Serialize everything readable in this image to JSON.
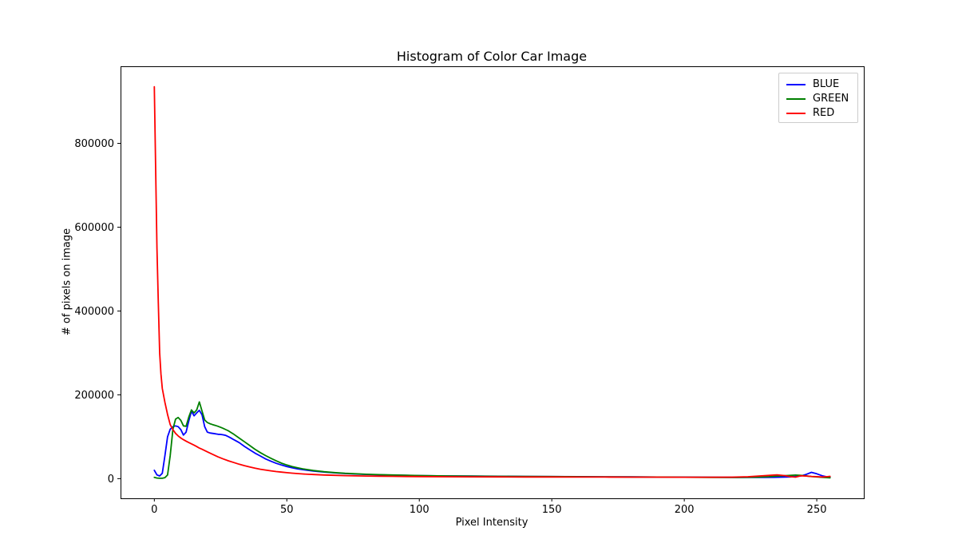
{
  "figure": {
    "background": "#ffffff",
    "spine_color": "#000000",
    "text_color": "#000000"
  },
  "chart_data": {
    "type": "line",
    "title": "Histogram of Color Car Image",
    "xlabel": "Pixel Intensity",
    "ylabel": "# of pixels on image",
    "x_range": [
      -12.75,
      267.75
    ],
    "y_range": [
      -46900,
      983900
    ],
    "x_ticks": [
      0,
      50,
      100,
      150,
      200,
      250
    ],
    "x_tick_labels": [
      "0",
      "50",
      "100",
      "150",
      "200",
      "250"
    ],
    "y_ticks": [
      0,
      200000,
      400000,
      600000,
      800000
    ],
    "y_tick_labels": [
      "0",
      "200000",
      "400000",
      "600000",
      "800000"
    ],
    "grid": false,
    "legend": {
      "position": "upper-right",
      "entries": [
        "BLUE",
        "GREEN",
        "RED"
      ]
    },
    "series": [
      {
        "name": "BLUE",
        "color": "#0000ff",
        "points": [
          [
            0,
            20000
          ],
          [
            1,
            9000
          ],
          [
            2,
            6500
          ],
          [
            3,
            13000
          ],
          [
            4,
            55000
          ],
          [
            5,
            100000
          ],
          [
            6,
            118000
          ],
          [
            7,
            124000
          ],
          [
            8,
            126000
          ],
          [
            9,
            124000
          ],
          [
            10,
            117000
          ],
          [
            11,
            104000
          ],
          [
            12,
            111000
          ],
          [
            13,
            138000
          ],
          [
            14,
            161000
          ],
          [
            15,
            150000
          ],
          [
            16,
            157000
          ],
          [
            17,
            163000
          ],
          [
            18,
            152000
          ],
          [
            19,
            124000
          ],
          [
            20,
            111000
          ],
          [
            21,
            109000
          ],
          [
            22,
            108000
          ],
          [
            23,
            107000
          ],
          [
            24,
            106000
          ],
          [
            25,
            105500
          ],
          [
            26,
            104500
          ],
          [
            27,
            103000
          ],
          [
            28,
            100000
          ],
          [
            29,
            96500
          ],
          [
            30,
            93000
          ],
          [
            32,
            86000
          ],
          [
            34,
            77000
          ],
          [
            36,
            69000
          ],
          [
            38,
            61000
          ],
          [
            40,
            54000
          ],
          [
            42,
            47000
          ],
          [
            44,
            41500
          ],
          [
            46,
            36500
          ],
          [
            48,
            32500
          ],
          [
            50,
            29000
          ],
          [
            52,
            26000
          ],
          [
            54,
            23500
          ],
          [
            56,
            21500
          ],
          [
            58,
            19800
          ],
          [
            60,
            18200
          ],
          [
            64,
            15800
          ],
          [
            68,
            13800
          ],
          [
            72,
            12200
          ],
          [
            76,
            11000
          ],
          [
            80,
            10100
          ],
          [
            85,
            9100
          ],
          [
            90,
            8400
          ],
          [
            95,
            7800
          ],
          [
            100,
            7300
          ],
          [
            110,
            6500
          ],
          [
            120,
            6000
          ],
          [
            130,
            5600
          ],
          [
            140,
            5300
          ],
          [
            150,
            5000
          ],
          [
            160,
            4700
          ],
          [
            170,
            4400
          ],
          [
            180,
            4100
          ],
          [
            190,
            3800
          ],
          [
            200,
            3600
          ],
          [
            210,
            3400
          ],
          [
            220,
            3100
          ],
          [
            228,
            3000
          ],
          [
            234,
            3200
          ],
          [
            240,
            4200
          ],
          [
            244,
            6500
          ],
          [
            246,
            10000
          ],
          [
            248,
            15000
          ],
          [
            250,
            11500
          ],
          [
            252,
            7000
          ],
          [
            254,
            4000
          ],
          [
            255,
            3000
          ]
        ]
      },
      {
        "name": "GREEN",
        "color": "#008000",
        "points": [
          [
            0,
            3000
          ],
          [
            1,
            1500
          ],
          [
            2,
            1000
          ],
          [
            3,
            1000
          ],
          [
            4,
            2500
          ],
          [
            5,
            9000
          ],
          [
            6,
            55000
          ],
          [
            7,
            118000
          ],
          [
            8,
            142000
          ],
          [
            9,
            146000
          ],
          [
            10,
            139000
          ],
          [
            11,
            126000
          ],
          [
            12,
            125000
          ],
          [
            13,
            147000
          ],
          [
            14,
            164000
          ],
          [
            15,
            157000
          ],
          [
            16,
            164000
          ],
          [
            17,
            183000
          ],
          [
            18,
            161000
          ],
          [
            19,
            140000
          ],
          [
            20,
            134000
          ],
          [
            21,
            131000
          ],
          [
            22,
            129000
          ],
          [
            23,
            127000
          ],
          [
            24,
            125000
          ],
          [
            25,
            122500
          ],
          [
            26,
            120000
          ],
          [
            27,
            117000
          ],
          [
            28,
            114000
          ],
          [
            29,
            110000
          ],
          [
            30,
            106000
          ],
          [
            32,
            97000
          ],
          [
            34,
            88000
          ],
          [
            36,
            79000
          ],
          [
            38,
            70000
          ],
          [
            40,
            62000
          ],
          [
            42,
            55000
          ],
          [
            44,
            48500
          ],
          [
            46,
            42500
          ],
          [
            48,
            37000
          ],
          [
            50,
            32500
          ],
          [
            52,
            29000
          ],
          [
            54,
            26000
          ],
          [
            56,
            23500
          ],
          [
            58,
            21500
          ],
          [
            60,
            19500
          ],
          [
            64,
            16500
          ],
          [
            68,
            14400
          ],
          [
            72,
            12800
          ],
          [
            76,
            11500
          ],
          [
            80,
            10500
          ],
          [
            85,
            9500
          ],
          [
            90,
            8700
          ],
          [
            95,
            8000
          ],
          [
            100,
            7400
          ],
          [
            110,
            6500
          ],
          [
            120,
            5900
          ],
          [
            130,
            5500
          ],
          [
            140,
            5200
          ],
          [
            150,
            4900
          ],
          [
            160,
            4600
          ],
          [
            170,
            4300
          ],
          [
            180,
            4000
          ],
          [
            190,
            3700
          ],
          [
            200,
            3400
          ],
          [
            210,
            3100
          ],
          [
            220,
            2900
          ],
          [
            228,
            3600
          ],
          [
            232,
            4800
          ],
          [
            236,
            6500
          ],
          [
            240,
            7800
          ],
          [
            242,
            8600
          ],
          [
            244,
            7800
          ],
          [
            248,
            5200
          ],
          [
            252,
            3200
          ],
          [
            255,
            2000
          ]
        ]
      },
      {
        "name": "RED",
        "color": "#ff0000",
        "points": [
          [
            0,
            935000
          ],
          [
            1,
            550000
          ],
          [
            1.5,
            420000
          ],
          [
            2,
            300000
          ],
          [
            2.5,
            250000
          ],
          [
            3,
            215000
          ],
          [
            4,
            182000
          ],
          [
            5,
            153000
          ],
          [
            6,
            129000
          ],
          [
            7,
            117000
          ],
          [
            8,
            108000
          ],
          [
            9,
            102000
          ],
          [
            10,
            97000
          ],
          [
            11,
            93000
          ],
          [
            12,
            89500
          ],
          [
            13,
            86000
          ],
          [
            14,
            83000
          ],
          [
            15,
            80000
          ],
          [
            16,
            76500
          ],
          [
            17,
            73000
          ],
          [
            18,
            70000
          ],
          [
            19,
            67000
          ],
          [
            20,
            64000
          ],
          [
            22,
            58000
          ],
          [
            24,
            52000
          ],
          [
            26,
            47000
          ],
          [
            28,
            42500
          ],
          [
            30,
            38500
          ],
          [
            32,
            34500
          ],
          [
            34,
            31000
          ],
          [
            36,
            28000
          ],
          [
            38,
            25000
          ],
          [
            40,
            22500
          ],
          [
            42,
            20500
          ],
          [
            44,
            18700
          ],
          [
            46,
            17000
          ],
          [
            48,
            15600
          ],
          [
            50,
            14300
          ],
          [
            52,
            13200
          ],
          [
            54,
            12200
          ],
          [
            56,
            11300
          ],
          [
            58,
            10500
          ],
          [
            60,
            9800
          ],
          [
            64,
            8700
          ],
          [
            68,
            7900
          ],
          [
            72,
            7200
          ],
          [
            76,
            6700
          ],
          [
            80,
            6300
          ],
          [
            85,
            5800
          ],
          [
            90,
            5500
          ],
          [
            95,
            5200
          ],
          [
            100,
            4900
          ],
          [
            110,
            4600
          ],
          [
            120,
            4300
          ],
          [
            130,
            4100
          ],
          [
            140,
            4000
          ],
          [
            150,
            3900
          ],
          [
            160,
            3800
          ],
          [
            170,
            3700
          ],
          [
            180,
            3600
          ],
          [
            190,
            3500
          ],
          [
            200,
            3450
          ],
          [
            210,
            3400
          ],
          [
            218,
            3600
          ],
          [
            224,
            4600
          ],
          [
            228,
            6200
          ],
          [
            232,
            7800
          ],
          [
            235,
            9200
          ],
          [
            238,
            7200
          ],
          [
            240,
            4800
          ],
          [
            242,
            3600
          ],
          [
            244,
            6800
          ],
          [
            246,
            6200
          ],
          [
            248,
            5400
          ],
          [
            250,
            4700
          ],
          [
            252,
            3900
          ],
          [
            254,
            4800
          ],
          [
            255,
            5500
          ]
        ]
      }
    ]
  }
}
